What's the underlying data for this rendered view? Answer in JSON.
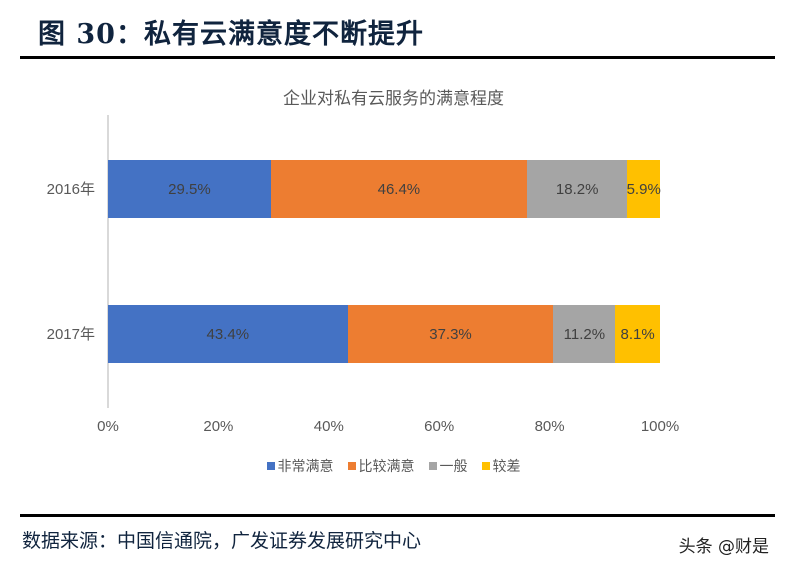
{
  "figure": {
    "title": "图 30：私有云满意度不断提升",
    "source": "数据来源：中国信通院，广发证券发展研究中心",
    "watermark": "头条 @财是"
  },
  "chart_data": {
    "type": "bar",
    "orientation": "horizontal",
    "stacked": "percent",
    "title": "企业对私有云服务的满意程度",
    "categories": [
      "2016年",
      "2017年"
    ],
    "series": [
      {
        "name": "非常满意",
        "color": "#4472C4",
        "values": [
          29.5,
          43.4
        ],
        "labels": [
          "29.5%",
          "43.4%"
        ]
      },
      {
        "name": "比较满意",
        "color": "#ED7D31",
        "values": [
          46.4,
          37.3
        ],
        "labels": [
          "46.4%",
          "37.3%"
        ]
      },
      {
        "name": "一般",
        "color": "#A5A5A5",
        "values": [
          18.2,
          11.2
        ],
        "labels": [
          "18.2%",
          "11.2%"
        ]
      },
      {
        "name": "较差",
        "color": "#FFC000",
        "values": [
          5.9,
          8.1
        ],
        "labels": [
          "5.9%",
          "8.1%"
        ]
      }
    ],
    "xlabel": "",
    "ylabel": "",
    "xlim": [
      0,
      100
    ],
    "x_ticks": [
      "0%",
      "20%",
      "40%",
      "60%",
      "80%",
      "100%"
    ],
    "grid": false,
    "legend_position": "bottom"
  }
}
